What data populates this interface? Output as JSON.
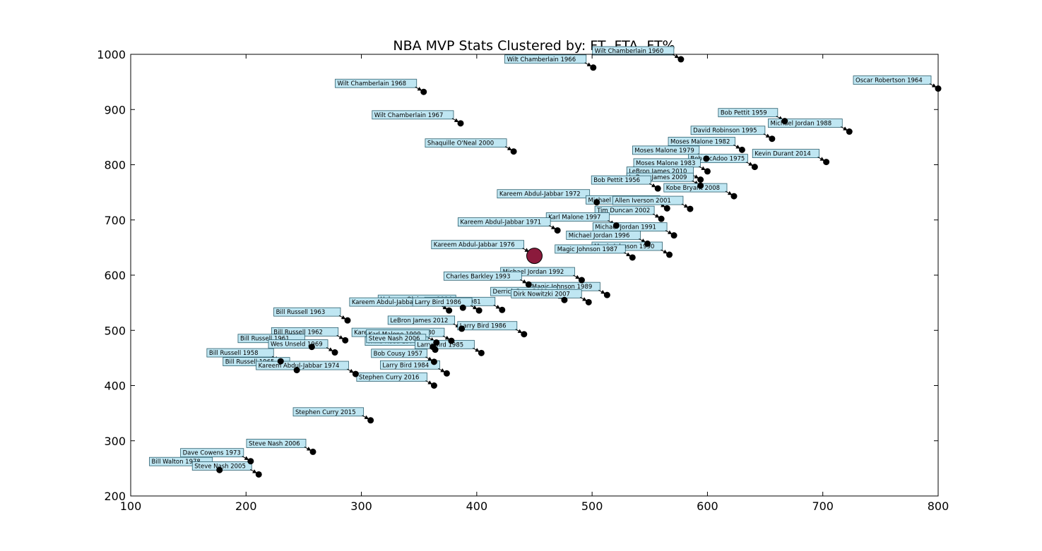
{
  "chart_data": {
    "type": "scatter",
    "title": "NBA MVP Stats Clustered by: FT, FTA, FT%",
    "xlabel": "",
    "ylabel": "",
    "xlim": [
      100,
      800
    ],
    "ylim": [
      200,
      1000
    ],
    "xticks": [
      100,
      200,
      300,
      400,
      500,
      600,
      700,
      800
    ],
    "yticks": [
      200,
      300,
      400,
      500,
      600,
      700,
      800,
      900,
      1000
    ],
    "grid": false,
    "colors": {
      "point": "#000000",
      "centroid": "#8b1a3c",
      "label_fill": "#bfe6f2",
      "label_edge": "#2c5f6e"
    },
    "centroid": {
      "x": 450,
      "y": 635
    },
    "points": [
      {
        "label": "Wilt Chamberlain 1960",
        "x": 577,
        "y": 991
      },
      {
        "label": "Wilt Chamberlain 1966",
        "x": 501,
        "y": 976
      },
      {
        "label": "Wilt Chamberlain 1968",
        "x": 354,
        "y": 932
      },
      {
        "label": "Oscar Robertson 1964",
        "x": 800,
        "y": 938
      },
      {
        "label": "Wilt Chamberlain 1967",
        "x": 386,
        "y": 875
      },
      {
        "label": "Bob Pettit 1959",
        "x": 667,
        "y": 879
      },
      {
        "label": "Michael Jordan 1988",
        "x": 723,
        "y": 860
      },
      {
        "label": "David Robinson 1995",
        "x": 656,
        "y": 847
      },
      {
        "label": "Moses Malone 1982",
        "x": 630,
        "y": 827
      },
      {
        "label": "Shaquille O'Neal 2000",
        "x": 432,
        "y": 824
      },
      {
        "label": "Moses Malone 1979",
        "x": 599,
        "y": 811
      },
      {
        "label": "Kevin Durant 2014",
        "x": 703,
        "y": 805
      },
      {
        "label": "Bob McAdoo 1975",
        "x": 641,
        "y": 796
      },
      {
        "label": "Moses Malone 1983",
        "x": 600,
        "y": 788
      },
      {
        "label": "LeBron James 2010",
        "x": 594,
        "y": 773
      },
      {
        "label": "LeBron James 2009",
        "x": 594,
        "y": 762
      },
      {
        "label": "Bob Pettit 1956",
        "x": 557,
        "y": 757
      },
      {
        "label": "Kobe Bryant 2008",
        "x": 623,
        "y": 743
      },
      {
        "label": "Kareem Abdul-Jabbar 1972",
        "x": 504,
        "y": 732
      },
      {
        "label": "Michael Jordan 1998",
        "x": 565,
        "y": 721
      },
      {
        "label": "Allen Iverson 2001",
        "x": 585,
        "y": 720
      },
      {
        "label": "Tim Duncan 2002",
        "x": 560,
        "y": 702
      },
      {
        "label": "Karl Malone 1997",
        "x": 521,
        "y": 690
      },
      {
        "label": "Kareem Abdul-Jabbar 1971",
        "x": 470,
        "y": 681
      },
      {
        "label": "Michael Jordan 1991",
        "x": 571,
        "y": 672
      },
      {
        "label": "Michael Jordan 1996",
        "x": 548,
        "y": 657
      },
      {
        "label": "Kareem Abdul-Jabbar 1976",
        "x": 447,
        "y": 640
      },
      {
        "label": "Magic Johnson 1990",
        "x": 567,
        "y": 637
      },
      {
        "label": "Magic Johnson 1987",
        "x": 535,
        "y": 632
      },
      {
        "label": "Michael Jordan 1992",
        "x": 491,
        "y": 591
      },
      {
        "label": "Charles Barkley 1993",
        "x": 445,
        "y": 583
      },
      {
        "label": "Magic Johnson 1989",
        "x": 513,
        "y": 564
      },
      {
        "label": "Derrick Rose 2011",
        "x": 476,
        "y": 555
      },
      {
        "label": "Dirk Nowitzki 2007",
        "x": 497,
        "y": 551
      },
      {
        "label": "Hakeem Olajuwon 1994",
        "x": 388,
        "y": 541
      },
      {
        "label": "Kareem Abdul-Jabbar 1977",
        "x": 376,
        "y": 536
      },
      {
        "label": "Julius Erving 1981",
        "x": 422,
        "y": 537
      },
      {
        "label": "Larry Bird 1986",
        "x": 402,
        "y": 536
      },
      {
        "label": "Bill Russell 1963",
        "x": 288,
        "y": 518
      },
      {
        "label": "LeBron James 2012",
        "x": 387,
        "y": 503
      },
      {
        "label": "Larry Bird 1986",
        "x": 441,
        "y": 493
      },
      {
        "label": "Bill Russell 1962",
        "x": 286,
        "y": 482
      },
      {
        "label": "Kareem Abdul-Jabbar 1980",
        "x": 378,
        "y": 481
      },
      {
        "label": "Karl Malone 1999",
        "x": 365,
        "y": 478
      },
      {
        "label": "Bill Russell 1961",
        "x": 257,
        "y": 470
      },
      {
        "label": "Wes Unseld 1969",
        "x": 277,
        "y": 460
      },
      {
        "label": "Willis Reed 1970",
        "x": 364,
        "y": 465
      },
      {
        "label": "Steve Nash 2006",
        "x": 362,
        "y": 470
      },
      {
        "label": "Larry Bird 1985",
        "x": 404,
        "y": 459
      },
      {
        "label": "Bill Russell 1958",
        "x": 230,
        "y": 444
      },
      {
        "label": "Bob Cousy 1957",
        "x": 363,
        "y": 443
      },
      {
        "label": "Bill Russell 1965",
        "x": 244,
        "y": 428
      },
      {
        "label": "Kareem Abdul-Jabbar 1974",
        "x": 295,
        "y": 421
      },
      {
        "label": "Larry Bird 1984",
        "x": 374,
        "y": 422
      },
      {
        "label": "Stephen Curry 2016",
        "x": 363,
        "y": 400
      },
      {
        "label": "Stephen Curry 2015",
        "x": 308,
        "y": 337
      },
      {
        "label": "Steve Nash 2006",
        "x": 258,
        "y": 280
      },
      {
        "label": "Dave Cowens 1973",
        "x": 204,
        "y": 263
      },
      {
        "label": "Bill Walton 1978",
        "x": 177,
        "y": 247
      },
      {
        "label": "Steve Nash 2005",
        "x": 211,
        "y": 239
      }
    ]
  }
}
